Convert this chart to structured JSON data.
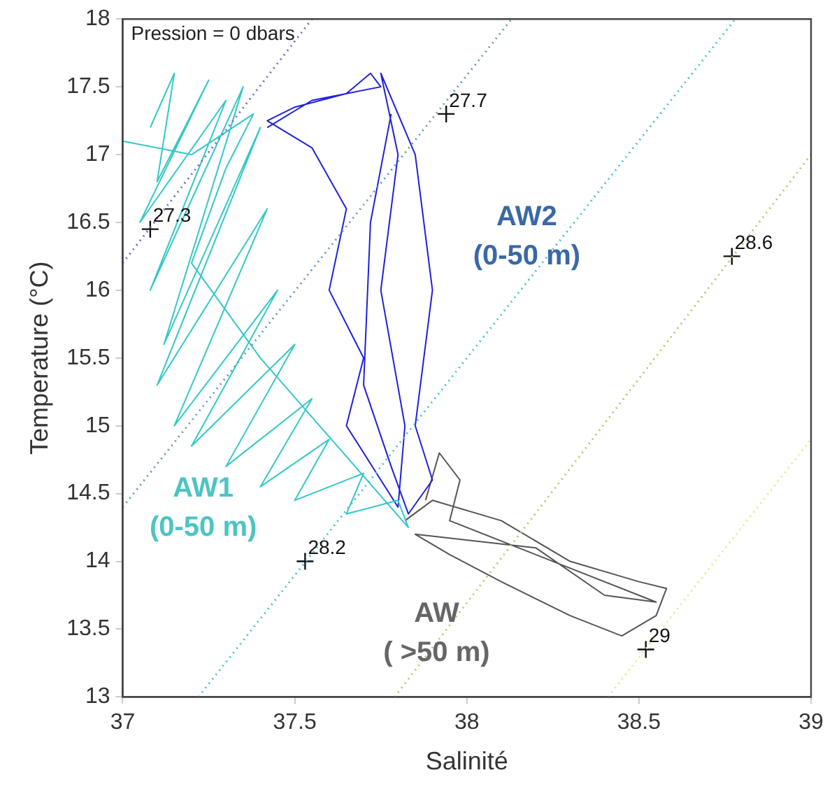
{
  "chart_data": {
    "type": "line",
    "title": "Pression = 0 dbars",
    "xlabel": "Salinité",
    "ylabel": "Temperature (°C)",
    "xlim": [
      37,
      39
    ],
    "xticks": [
      37,
      37.5,
      38,
      38.5,
      39
    ],
    "ylim": [
      13,
      18
    ],
    "yticks": [
      13,
      13.5,
      14,
      14.5,
      15,
      15.5,
      16,
      16.5,
      17,
      17.5,
      18
    ],
    "grid": false,
    "legend": false,
    "marker": "none",
    "series": [
      {
        "type": "line",
        "line_style": "dotted",
        "color": "#7a6ab8",
        "x": [
          37.0,
          37.55
        ],
        "values": [
          16.2,
          18.0
        ]
      },
      {
        "type": "line",
        "line_style": "dotted",
        "color": "#6a9ab8",
        "x": [
          37.0,
          38.13
        ],
        "values": [
          14.4,
          18.0
        ]
      },
      {
        "type": "line",
        "line_style": "dotted",
        "color": "#4cc0d0",
        "x": [
          37.22,
          38.78
        ],
        "values": [
          13.0,
          18.0
        ]
      },
      {
        "type": "line",
        "line_style": "dotted",
        "color": "#c8c070",
        "x": [
          37.79,
          39.0
        ],
        "values": [
          13.0,
          17.0
        ]
      },
      {
        "type": "line",
        "line_style": "dotted",
        "color": "#e8e890",
        "x": [
          38.41,
          39.0
        ],
        "values": [
          13.0,
          14.9
        ]
      },
      {
        "type": "line",
        "line_style": "solid",
        "color": "#33c8c8",
        "x": [
          37.08,
          37.15,
          37.1,
          37.25,
          37.05,
          37.3,
          37.08,
          37.35,
          37.12,
          37.4,
          37.1,
          37.42,
          37.15,
          37.45,
          37.2,
          37.5,
          37.3,
          37.55,
          37.4,
          37.6,
          37.5,
          37.7,
          37.65,
          37.8,
          37.83,
          37.4,
          37.2,
          37.3,
          37.38,
          37.2,
          37.0
        ],
        "values": [
          17.2,
          17.6,
          16.8,
          17.55,
          16.5,
          17.4,
          16.0,
          17.5,
          15.6,
          17.2,
          15.3,
          16.6,
          15.0,
          16.0,
          14.85,
          15.6,
          14.7,
          15.2,
          14.55,
          14.9,
          14.45,
          14.65,
          14.35,
          14.45,
          14.25,
          15.5,
          16.2,
          16.9,
          17.3,
          17.0,
          17.1
        ]
      },
      {
        "type": "line",
        "line_style": "solid",
        "color": "#2020dd",
        "x": [
          37.42,
          37.55,
          37.75,
          37.72,
          37.65,
          37.5,
          37.42,
          37.55,
          37.65,
          37.6,
          37.7,
          37.65,
          37.75,
          37.8,
          37.82,
          37.75,
          37.8,
          37.75,
          37.85,
          37.9,
          37.85,
          37.9,
          37.83,
          37.78,
          37.7,
          37.72,
          37.78
        ],
        "values": [
          17.2,
          17.4,
          17.5,
          17.6,
          17.45,
          17.35,
          17.25,
          17.05,
          16.6,
          16.0,
          15.5,
          15.0,
          14.6,
          14.4,
          15.0,
          16.0,
          17.0,
          17.6,
          17.0,
          16.0,
          15.0,
          14.6,
          14.35,
          14.7,
          15.3,
          16.5,
          17.3
        ]
      },
      {
        "type": "line",
        "line_style": "solid",
        "color": "#555555",
        "x": [
          37.82,
          37.9,
          38.1,
          38.3,
          38.5,
          38.58,
          38.55,
          38.45,
          38.3,
          38.1,
          37.95,
          37.85,
          38.2,
          38.4,
          38.55,
          37.95,
          37.98,
          37.92,
          37.88
        ],
        "values": [
          14.3,
          14.45,
          14.3,
          14.0,
          13.85,
          13.8,
          13.6,
          13.45,
          13.6,
          13.85,
          14.05,
          14.2,
          14.1,
          13.75,
          13.7,
          14.3,
          14.6,
          14.8,
          14.45
        ]
      },
      {
        "type": "scatter",
        "marker": "cross",
        "color": "#111111",
        "x": [
          37.08,
          37.94,
          37.53,
          38.77,
          38.52
        ],
        "values": [
          16.45,
          17.3,
          14.0,
          16.25,
          13.35
        ]
      }
    ],
    "annotations": [
      {
        "text": "27.3",
        "x": 37.08,
        "y": 16.45
      },
      {
        "text": "27.7",
        "x": 37.94,
        "y": 17.3
      },
      {
        "text": "28.2",
        "x": 37.53,
        "y": 14.0
      },
      {
        "text": "28.6",
        "x": 38.77,
        "y": 16.25
      },
      {
        "text": "29",
        "x": 38.52,
        "y": 13.35
      },
      "AW1 (0-50 m)",
      "AW2 (0-50 m)",
      "AW ( >50 m)"
    ]
  }
}
